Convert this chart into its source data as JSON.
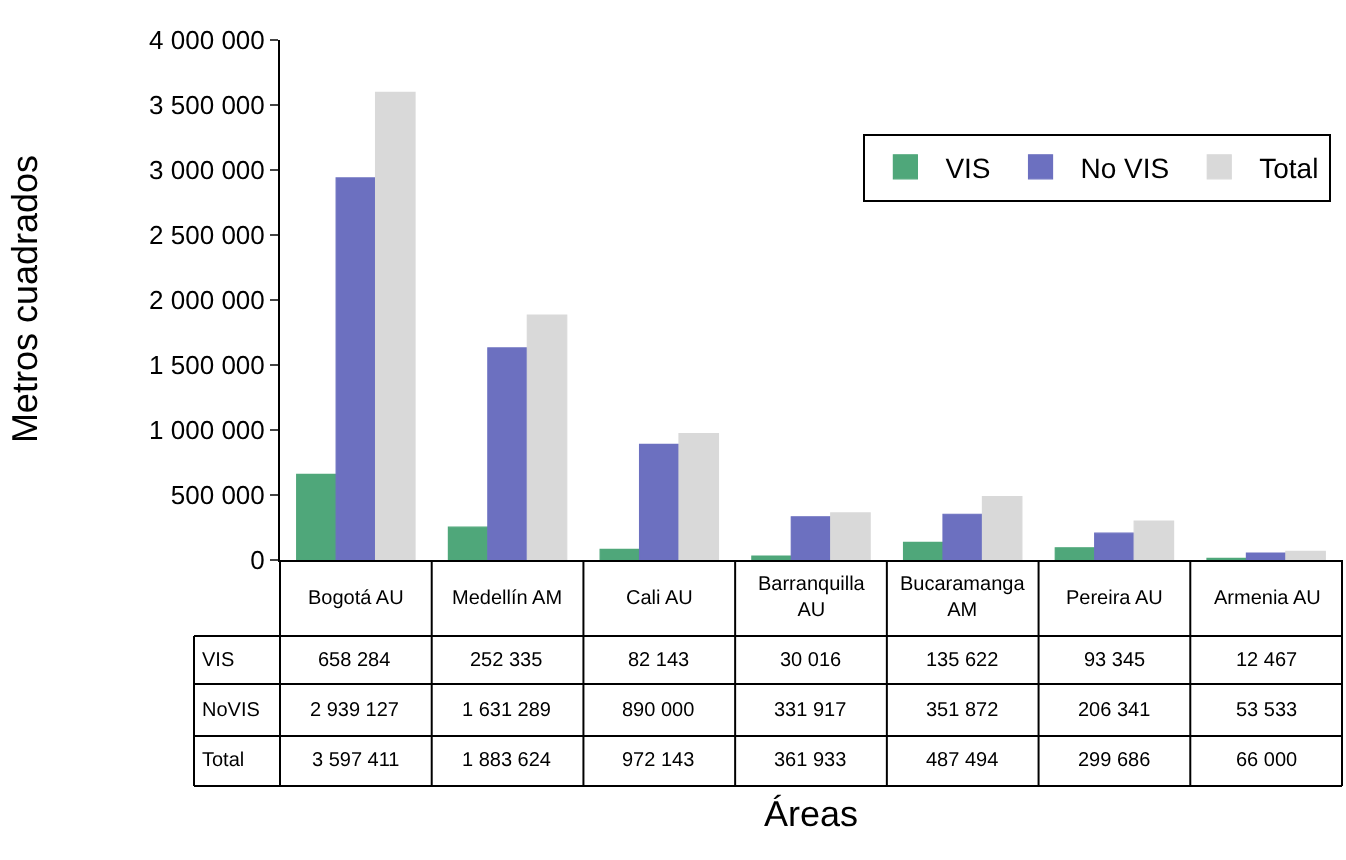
{
  "chart_data": {
    "type": "bar",
    "xlabel": "Áreas",
    "ylabel": "Metros cuadrados",
    "categories": [
      "Bogotá AU",
      "Medellín AM",
      "Cali AU",
      "Barranquilla AU",
      "Bucaramanga AM",
      "Pereira AU",
      "Armenia AU"
    ],
    "series": [
      {
        "name": "VIS",
        "color": "#4fa77a",
        "values": [
          658284,
          252335,
          82143,
          30016,
          135622,
          93345,
          12467
        ],
        "value_labels": [
          "658 284",
          "252 335",
          "82 143",
          "30 016",
          "135 622",
          "93 345",
          "12 467"
        ]
      },
      {
        "name": "No VIS",
        "color": "#6c70c0",
        "values": [
          2939127,
          1631289,
          890000,
          331917,
          351872,
          206341,
          53533
        ],
        "value_labels": [
          "2 939 127",
          "1 631 289",
          "890 000",
          "331 917",
          "351 872",
          "206 341",
          "53 533"
        ]
      },
      {
        "name": "Total",
        "color": "#d9d9d9",
        "values": [
          3597411,
          1883624,
          972143,
          361933,
          487494,
          299686,
          66000
        ],
        "value_labels": [
          "3 597 411",
          "1 883 624",
          "972 143",
          "361 933",
          "487 494",
          "299 686",
          "66 000"
        ]
      }
    ],
    "annotations": [
      "VIS",
      "NoVIS",
      "Total"
    ],
    "ylim": [
      0,
      4000000
    ],
    "yticks": [
      {
        "value": 0,
        "label": "0"
      },
      {
        "value": 500000,
        "label": "500 000"
      },
      {
        "value": 1000000,
        "label": "1 000 000"
      },
      {
        "value": 1500000,
        "label": "1 500 000"
      },
      {
        "value": 2000000,
        "label": "2 000 000"
      },
      {
        "value": 2500000,
        "label": "2 500 000"
      },
      {
        "value": 3000000,
        "label": "3 000 000"
      },
      {
        "value": 3500000,
        "label": "3 500 000"
      },
      {
        "value": 4000000,
        "label": "4 000 000"
      }
    ],
    "legend": "top right",
    "tick_labels": "y"
  }
}
